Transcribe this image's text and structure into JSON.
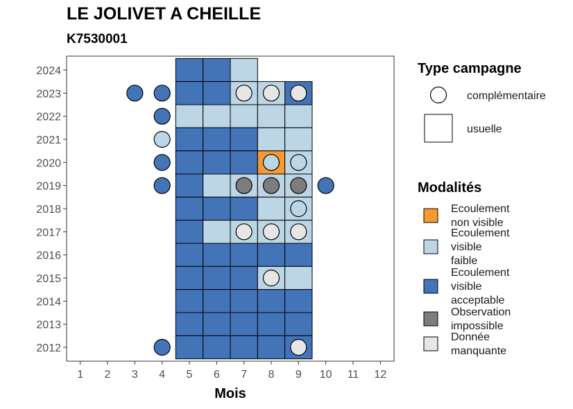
{
  "title": "LE JOLIVET A CHEILLE",
  "subtitle": "K7530001",
  "chart_data": {
    "type": "heatmap",
    "xlabel": "Mois",
    "ylabel": "",
    "x_ticks": [
      "1",
      "2",
      "3",
      "4",
      "5",
      "6",
      "7",
      "8",
      "9",
      "10",
      "11",
      "12"
    ],
    "y_ticks": [
      "2012",
      "2013",
      "2014",
      "2015",
      "2016",
      "2017",
      "2018",
      "2019",
      "2020",
      "2021",
      "2022",
      "2023",
      "2024"
    ],
    "xlim": [
      0.5,
      12.5
    ],
    "ylim": [
      2011.4,
      2024.6
    ],
    "grid": false,
    "colors": {
      "Ecoulement non visible": "#f89a31",
      "Ecoulement visible faible": "#bcd6e6",
      "Ecoulement visible acceptable": "#4474b8",
      "Observation impossible": "#7d7d7d",
      "Donnée manquante": "#e6e6e6"
    },
    "usuelle": [
      {
        "year": 2024,
        "months": [
          5,
          6
        ],
        "modalite": "Ecoulement visible acceptable"
      },
      {
        "year": 2024,
        "months": [
          7
        ],
        "modalite": "Ecoulement visible faible"
      },
      {
        "year": 2023,
        "months": [
          5,
          6,
          9
        ],
        "modalite": "Ecoulement visible acceptable"
      },
      {
        "year": 2023,
        "months": [
          7,
          8
        ],
        "modalite": "Ecoulement visible faible"
      },
      {
        "year": 2022,
        "months": [
          5,
          6,
          7,
          8,
          9
        ],
        "modalite": "Ecoulement visible faible"
      },
      {
        "year": 2021,
        "months": [
          5,
          6,
          7
        ],
        "modalite": "Ecoulement visible acceptable"
      },
      {
        "year": 2021,
        "months": [
          8,
          9
        ],
        "modalite": "Ecoulement visible faible"
      },
      {
        "year": 2020,
        "months": [
          5,
          6,
          7
        ],
        "modalite": "Ecoulement visible acceptable"
      },
      {
        "year": 2020,
        "months": [
          8
        ],
        "modalite": "Ecoulement non visible"
      },
      {
        "year": 2020,
        "months": [
          9
        ],
        "modalite": "Ecoulement visible faible"
      },
      {
        "year": 2019,
        "months": [
          5
        ],
        "modalite": "Ecoulement visible acceptable"
      },
      {
        "year": 2019,
        "months": [
          6,
          7,
          8,
          9
        ],
        "modalite": "Ecoulement visible faible"
      },
      {
        "year": 2018,
        "months": [
          5,
          6,
          7
        ],
        "modalite": "Ecoulement visible acceptable"
      },
      {
        "year": 2018,
        "months": [
          8,
          9
        ],
        "modalite": "Ecoulement visible faible"
      },
      {
        "year": 2017,
        "months": [
          5
        ],
        "modalite": "Ecoulement visible acceptable"
      },
      {
        "year": 2017,
        "months": [
          6,
          7,
          8,
          9
        ],
        "modalite": "Ecoulement visible faible"
      },
      {
        "year": 2016,
        "months": [
          5,
          6,
          7,
          8,
          9
        ],
        "modalite": "Ecoulement visible acceptable"
      },
      {
        "year": 2015,
        "months": [
          5,
          6,
          7
        ],
        "modalite": "Ecoulement visible acceptable"
      },
      {
        "year": 2015,
        "months": [
          8,
          9
        ],
        "modalite": "Ecoulement visible faible"
      },
      {
        "year": 2014,
        "months": [
          5,
          6,
          7,
          8,
          9
        ],
        "modalite": "Ecoulement visible acceptable"
      },
      {
        "year": 2013,
        "months": [
          5,
          6,
          7,
          8,
          9
        ],
        "modalite": "Ecoulement visible acceptable"
      },
      {
        "year": 2012,
        "months": [
          5,
          6,
          7,
          8,
          9
        ],
        "modalite": "Ecoulement visible acceptable"
      }
    ],
    "complementaire": [
      {
        "year": 2023,
        "month": 3,
        "modalite": "Ecoulement visible acceptable"
      },
      {
        "year": 2023,
        "month": 4,
        "modalite": "Ecoulement visible acceptable"
      },
      {
        "year": 2023,
        "month": 7,
        "modalite": "Donnée manquante"
      },
      {
        "year": 2023,
        "month": 8,
        "modalite": "Donnée manquante"
      },
      {
        "year": 2023,
        "month": 9,
        "modalite": "Donnée manquante"
      },
      {
        "year": 2022,
        "month": 4,
        "modalite": "Ecoulement visible acceptable"
      },
      {
        "year": 2021,
        "month": 4,
        "modalite": "Ecoulement visible faible"
      },
      {
        "year": 2020,
        "month": 4,
        "modalite": "Ecoulement visible acceptable"
      },
      {
        "year": 2020,
        "month": 8,
        "modalite": "Ecoulement visible faible"
      },
      {
        "year": 2020,
        "month": 9,
        "modalite": "Ecoulement visible faible"
      },
      {
        "year": 2019,
        "month": 4,
        "modalite": "Ecoulement visible acceptable"
      },
      {
        "year": 2019,
        "month": 7,
        "modalite": "Observation impossible"
      },
      {
        "year": 2019,
        "month": 8,
        "modalite": "Observation impossible"
      },
      {
        "year": 2019,
        "month": 9,
        "modalite": "Observation impossible"
      },
      {
        "year": 2019,
        "month": 10,
        "modalite": "Ecoulement visible acceptable"
      },
      {
        "year": 2018,
        "month": 9,
        "modalite": "Ecoulement visible faible"
      },
      {
        "year": 2017,
        "month": 7,
        "modalite": "Donnée manquante"
      },
      {
        "year": 2017,
        "month": 8,
        "modalite": "Donnée manquante"
      },
      {
        "year": 2017,
        "month": 9,
        "modalite": "Donnée manquante"
      },
      {
        "year": 2015,
        "month": 8,
        "modalite": "Donnée manquante"
      },
      {
        "year": 2012,
        "month": 4,
        "modalite": "Ecoulement visible acceptable"
      },
      {
        "year": 2012,
        "month": 9,
        "modalite": "Donnée manquante"
      }
    ],
    "legend_type": {
      "title": "Type campagne",
      "items": [
        "complémentaire",
        "usuelle"
      ]
    },
    "legend_modalites": {
      "title": "Modalités",
      "items": [
        {
          "lines": [
            "Ecoulement",
            "non visible"
          ],
          "key": "Ecoulement non visible"
        },
        {
          "lines": [
            "Ecoulement",
            "visible",
            "faible"
          ],
          "key": "Ecoulement visible faible"
        },
        {
          "lines": [
            "Ecoulement",
            "visible",
            "acceptable"
          ],
          "key": "Ecoulement visible acceptable"
        },
        {
          "lines": [
            "Observation",
            "impossible"
          ],
          "key": "Observation impossible"
        },
        {
          "lines": [
            "Donnée",
            "manquante"
          ],
          "key": "Donnée manquante"
        }
      ]
    }
  }
}
